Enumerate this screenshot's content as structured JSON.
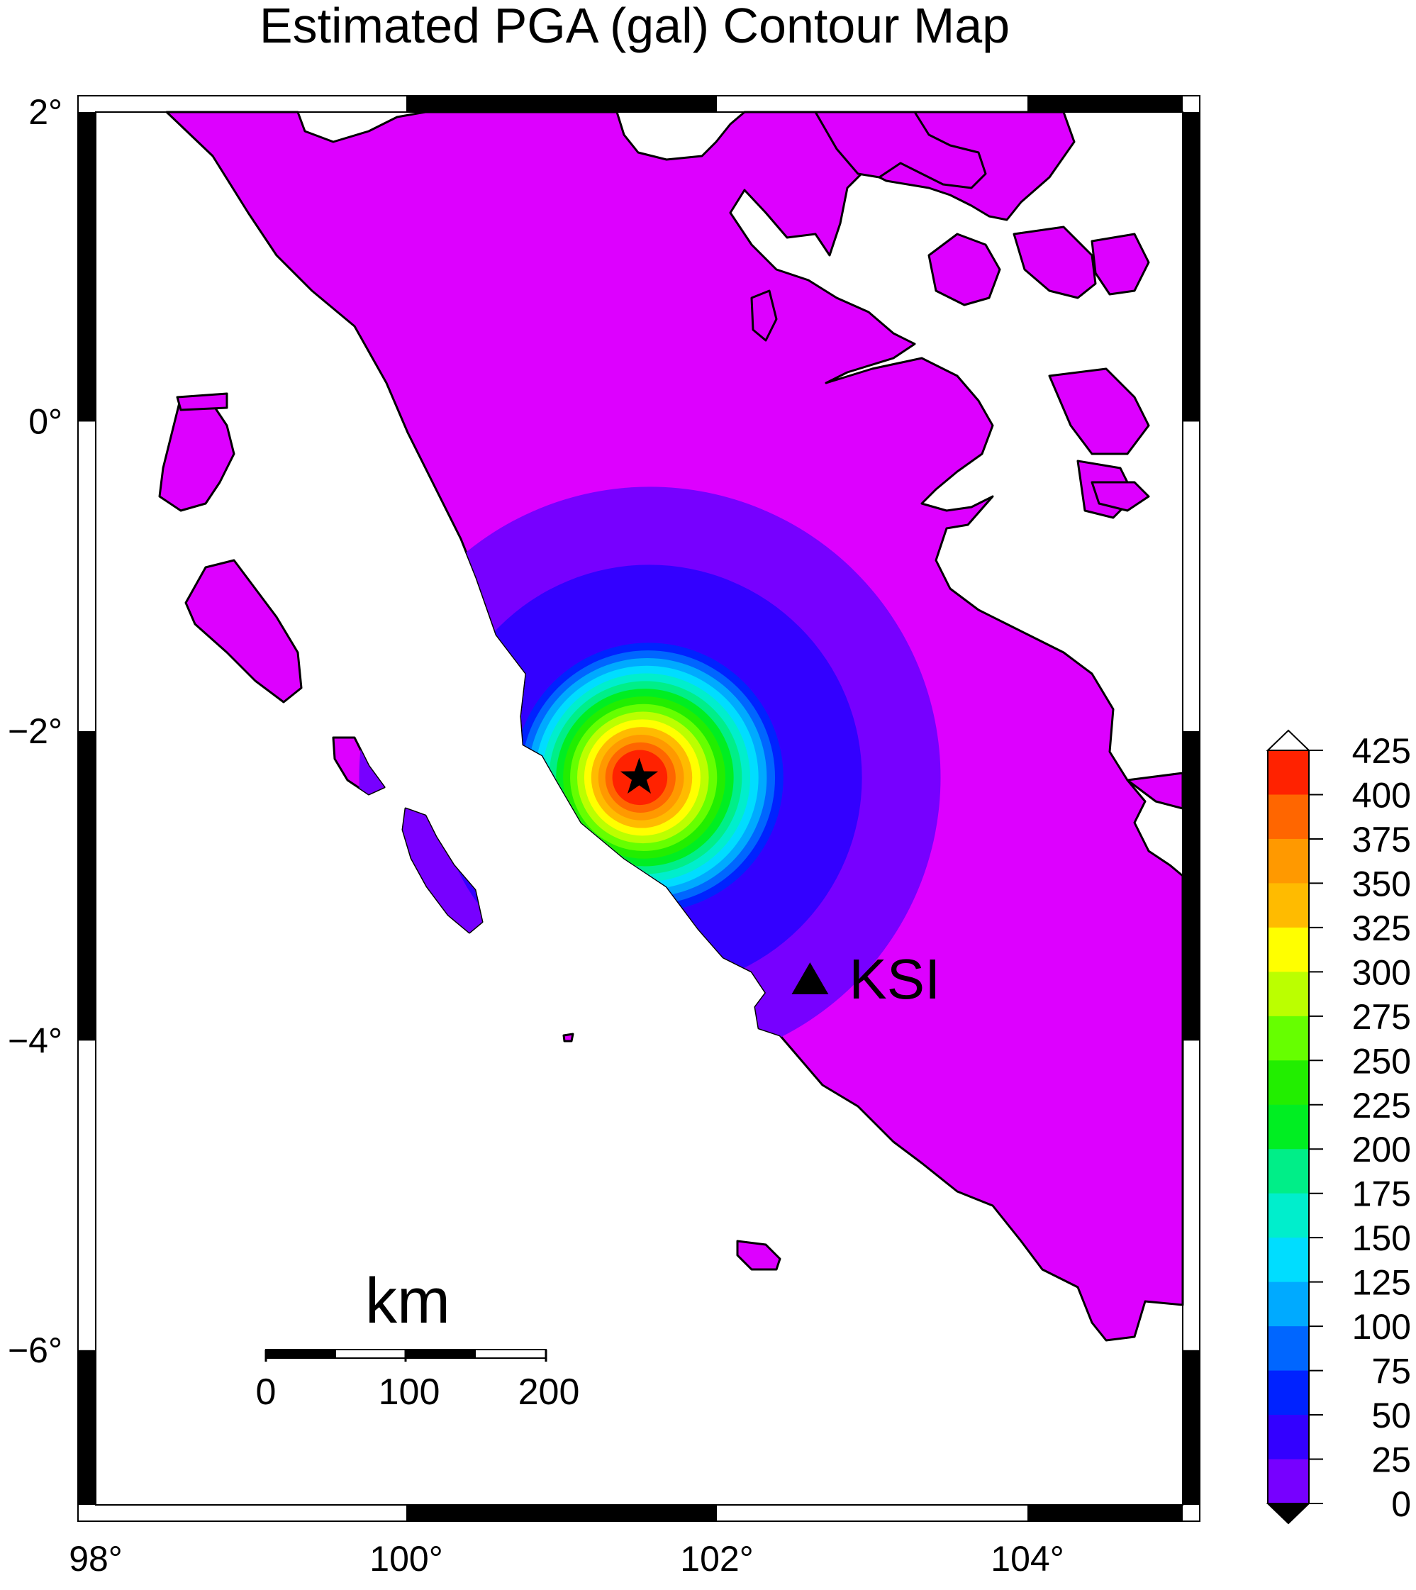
{
  "title": "Estimated PGA (gal) Contour Map",
  "x_ticks": [
    {
      "label": "98°",
      "value": 98
    },
    {
      "label": "100°",
      "value": 100
    },
    {
      "label": "102°",
      "value": 102
    },
    {
      "label": "104°",
      "value": 104
    }
  ],
  "y_ticks": [
    {
      "label": "2°",
      "value": 2
    },
    {
      "label": "0°",
      "value": 0
    },
    {
      "label": "−2°",
      "value": -2
    },
    {
      "label": "−4°",
      "value": -4
    },
    {
      "label": "−6°",
      "value": -6
    }
  ],
  "colorbar": {
    "labels": [
      "425",
      "400",
      "375",
      "350",
      "325",
      "300",
      "275",
      "250",
      "225",
      "200",
      "175",
      "150",
      "125",
      "100",
      "75",
      "50",
      "25",
      "0"
    ],
    "colors": [
      "#ff2200",
      "#ff6600",
      "#ff9900",
      "#ffbb00",
      "#ffff00",
      "#bbff00",
      "#66ff00",
      "#22ee00",
      "#00ee22",
      "#00ee88",
      "#00eecc",
      "#00ddff",
      "#00aaff",
      "#0066ff",
      "#0022ff",
      "#3300ff",
      "#7700ff",
      "#dd00ff"
    ]
  },
  "station": {
    "label": "KSI",
    "lon": 102.6,
    "lat": -3.6
  },
  "epicenter": {
    "lon": 101.5,
    "lat": -2.3
  },
  "scale_bar": {
    "unit": "km",
    "labels": [
      "0",
      "100",
      "200"
    ]
  },
  "chart_data": {
    "type": "heatmap",
    "title": "Estimated PGA (gal) Contour Map",
    "xlim": [
      98,
      105
    ],
    "ylim": [
      -7,
      2
    ],
    "x_label_values": [
      98,
      100,
      102,
      104
    ],
    "y_label_values": [
      2,
      0,
      -2,
      -4,
      -6
    ],
    "contour_levels": [
      0,
      25,
      50,
      75,
      100,
      125,
      150,
      175,
      200,
      225,
      250,
      275,
      300,
      325,
      350,
      375,
      400,
      425
    ],
    "max_pga_center": {
      "lon": 101.5,
      "lat": -2.3,
      "value_range": [
        375,
        425
      ]
    },
    "station": {
      "name": "KSI",
      "lon": 102.6,
      "lat": -3.6
    }
  }
}
